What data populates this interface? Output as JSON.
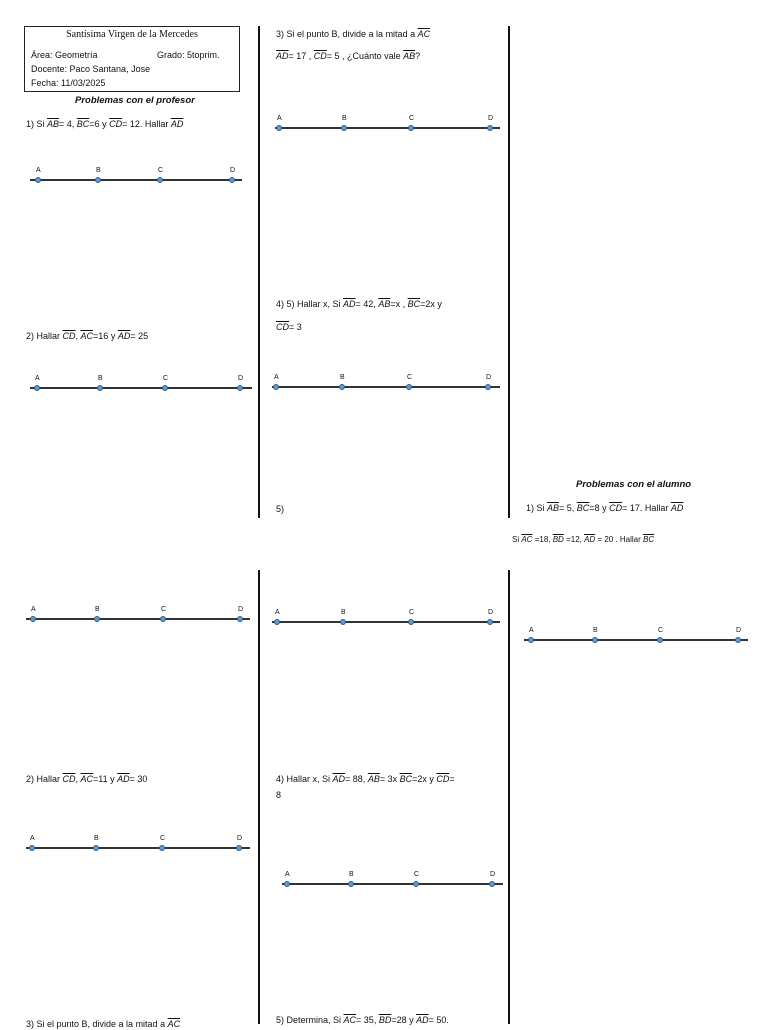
{
  "header": {
    "school": "Santísima Virgen de la Mercedes",
    "area": "Área: Geometría",
    "grade": "Grado: 5toprim.",
    "teacher": "Docente: Paco Santana, Jose",
    "date": "Fecha: 11/03/2025"
  },
  "section_teacher": "Problemas con el profesor",
  "section_student": "Problemas con el alumno",
  "point_labels": [
    "A",
    "B",
    "C",
    "D"
  ],
  "problems": {
    "p1_teacher": {
      "pre": "1) Si ",
      "s1": "AB",
      "t1": "= 4, ",
      "s2": "BC",
      "t2": "=6 y ",
      "s3": "CD",
      "t3": "= 12. Hallar ",
      "s4": "AD"
    },
    "p2_teacher": {
      "pre": "2) Hallar ",
      "s1": "CD",
      "t1": ", ",
      "s2": "AC",
      "t2": "=16 y ",
      "s3": "AD",
      "t3": "= 25"
    },
    "p3_teacher": {
      "pre": "3) Si el punto B, divide a la mitad a ",
      "s1": "AC",
      "l2a": "AD",
      "l2b": "= 17 , ",
      "l2c": "CD",
      "l2d": "= 5 , ¿Cuánto vale ",
      "l2e": "AB",
      "l2f": "?"
    },
    "p4_teacher": {
      "pre": "4) 5) Hallar x, Si ",
      "s1": "AD",
      "t1": "= 42, ",
      "s2": "AB",
      "t2": "=x , ",
      "s3": "BC",
      "t3": "=2x y",
      "s4": "CD",
      "t4": "= 3"
    },
    "p5_teacher": "5)",
    "p1_student": {
      "pre": "1) Si ",
      "s1": "AB",
      "t1": "= 5, ",
      "s2": "BC",
      "t2": "=8 y ",
      "s3": "CD",
      "t3": "= 17. Hallar ",
      "s4": "AD"
    },
    "p_extra": {
      "pre": "Si ",
      "s1": "AC",
      "t1": " =18, ",
      "s2": "BD",
      "t2": " =12, ",
      "s3": "AD",
      "t3": " = 20 . Hallar ",
      "s4": "BC"
    },
    "p2_student": {
      "pre": "2) Hallar ",
      "s1": "CD",
      "t1": ", ",
      "s2": "AC",
      "t2": "=11 y ",
      "s3": "AD",
      "t3": "= 30"
    },
    "p4_student": {
      "pre": "4) Hallar x, Si ",
      "s1": "AD",
      "t1": "= 88, ",
      "s2": "AB",
      "t2": "= 3x ",
      "s3": "BC",
      "t3": "=2x y ",
      "s4": "CD",
      "t4": "=",
      "t5": "8"
    },
    "p3_student": {
      "pre": "3) Si el punto B, divide a la mitad a ",
      "s1": "AC"
    },
    "p5_student": {
      "pre": "5) Determina, Si ",
      "s1": "AC",
      "t1": "= 35, ",
      "s2": "BD",
      "t2": "=28 y ",
      "s3": "AD",
      "t3": "= 50."
    }
  }
}
